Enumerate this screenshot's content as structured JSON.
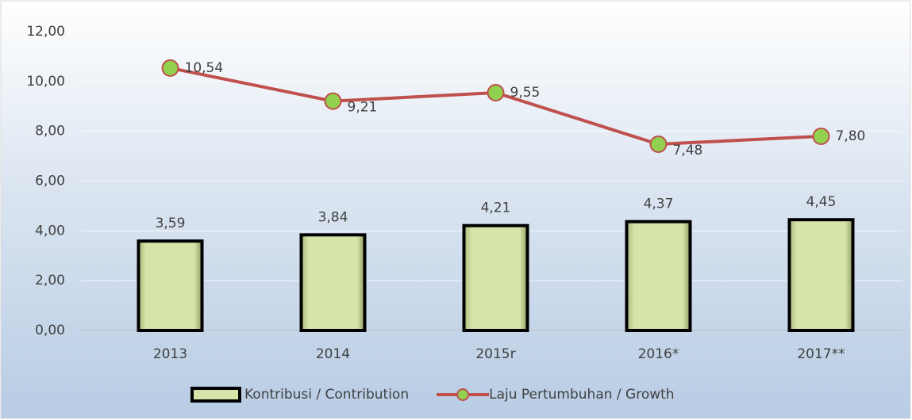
{
  "chart_data": {
    "type": "combo",
    "categories": [
      "2013",
      "2014",
      "2015r",
      "2016*",
      "2017**"
    ],
    "ylim": [
      0,
      12
    ],
    "yticks": [
      {
        "value": 0,
        "label": "0,00"
      },
      {
        "value": 2,
        "label": "2,00"
      },
      {
        "value": 4,
        "label": "4,00"
      },
      {
        "value": 6,
        "label": "6,00"
      },
      {
        "value": 8,
        "label": "8,00"
      },
      {
        "value": 10,
        "label": "10,00"
      },
      {
        "value": 12,
        "label": "12,00"
      }
    ],
    "grid": true,
    "legend": "bottom",
    "series": [
      {
        "name": "Kontribusi / Contribution",
        "type": "bar",
        "color": "#d7e4a8",
        "values": [
          3.59,
          3.84,
          4.21,
          4.37,
          4.45
        ],
        "value_labels": [
          "3,59",
          "3,84",
          "4,21",
          "4,37",
          "4,45"
        ]
      },
      {
        "name": "Laju Pertumbuhan / Growth",
        "type": "line",
        "color": "#c0504d",
        "marker_color": "#92d050",
        "values": [
          10.54,
          9.21,
          9.55,
          7.48,
          7.8
        ],
        "value_labels": [
          "10,54",
          "9,21",
          "9,55",
          "7,48",
          "7,80"
        ]
      }
    ]
  }
}
